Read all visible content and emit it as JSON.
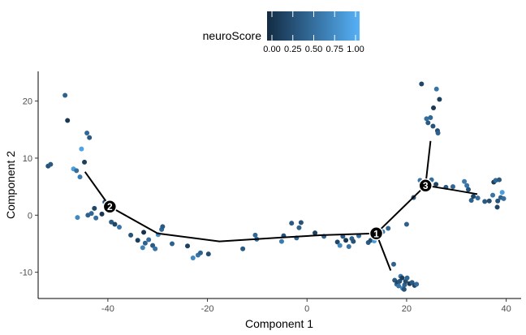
{
  "chart_data": {
    "type": "scatter",
    "xlabel": "Component 1",
    "ylabel": "Component 2",
    "xlim": [
      -54,
      43
    ],
    "ylim": [
      -14.6,
      25.2
    ],
    "xticks": [
      -40,
      -20,
      0,
      20,
      40
    ],
    "yticks": [
      -10,
      0,
      10,
      20
    ],
    "xtick_labels": [
      "-40",
      "-20",
      "0",
      "20",
      "40"
    ],
    "ytick_labels": [
      "-10",
      "0",
      "10",
      "20"
    ],
    "grid": false,
    "legend": {
      "title": "neuroScore",
      "placement": "top",
      "ticks": [
        0.0,
        0.25,
        0.5,
        0.75,
        1.0
      ],
      "tick_labels": [
        "0.00",
        "0.25",
        "0.50",
        "0.75",
        "1.00"
      ],
      "color_low": "#132b43",
      "color_high": "#56b1f7"
    },
    "trajectory": [
      [
        [
          -44.6,
          7.6
        ],
        [
          -39.6,
          1.5
        ],
        [
          -30,
          -3.2
        ],
        [
          -17.6,
          -4.6
        ],
        [
          -5,
          -3.9
        ],
        [
          3,
          -3.5
        ],
        [
          13.9,
          -3.2
        ]
      ],
      [
        [
          13.9,
          -3.2
        ],
        [
          23.8,
          5.2
        ]
      ],
      [
        [
          23.8,
          5.2
        ],
        [
          24.8,
          13.0
        ]
      ],
      [
        [
          23.8,
          5.2
        ],
        [
          29.5,
          4.4
        ],
        [
          34.2,
          3.7
        ]
      ],
      [
        [
          13.9,
          -3.2
        ],
        [
          16.8,
          -9.7
        ]
      ]
    ],
    "branch_nodes": [
      {
        "label": "1",
        "x": 13.9,
        "y": -3.2
      },
      {
        "label": "2",
        "x": -39.6,
        "y": 1.5
      },
      {
        "label": "3",
        "x": 23.8,
        "y": 5.2
      }
    ],
    "points": [
      {
        "x": -52,
        "y": 8.6,
        "score": 0.3
      },
      {
        "x": -51.5,
        "y": 8.9,
        "score": 0.35
      },
      {
        "x": -48.6,
        "y": 21.0,
        "score": 0.4
      },
      {
        "x": -48.1,
        "y": 16.6,
        "score": 0.1
      },
      {
        "x": -46.9,
        "y": 8.1,
        "score": 0.85
      },
      {
        "x": -46.3,
        "y": 7.8,
        "score": 0.5
      },
      {
        "x": -45.3,
        "y": 11.6,
        "score": 0.9
      },
      {
        "x": -44.7,
        "y": 9.3,
        "score": 0.15
      },
      {
        "x": -44.2,
        "y": 14.4,
        "score": 0.45
      },
      {
        "x": -43.7,
        "y": 13.6,
        "score": 0.35
      },
      {
        "x": -45.6,
        "y": 6.7,
        "score": 0.6
      },
      {
        "x": -46.1,
        "y": -0.4,
        "score": 0.7
      },
      {
        "x": -44.0,
        "y": 0.0,
        "score": 0.4
      },
      {
        "x": -43.3,
        "y": 0.3,
        "score": 0.45
      },
      {
        "x": -42.7,
        "y": 1.2,
        "score": 0.2
      },
      {
        "x": -42.4,
        "y": -0.5,
        "score": 0.5
      },
      {
        "x": -41.2,
        "y": 0.2,
        "score": 0.1
      },
      {
        "x": -40.6,
        "y": 2.3,
        "score": 0.3
      },
      {
        "x": -39.3,
        "y": -1.2,
        "score": 0.35
      },
      {
        "x": -38.6,
        "y": -1.6,
        "score": 0.2
      },
      {
        "x": -37.7,
        "y": -2.1,
        "score": 0.55
      },
      {
        "x": -35.4,
        "y": -3.5,
        "score": 0.3
      },
      {
        "x": -34.0,
        "y": -4.4,
        "score": 0.15
      },
      {
        "x": -33.0,
        "y": -5.7,
        "score": 0.65
      },
      {
        "x": -32.5,
        "y": -4.9,
        "score": 0.4
      },
      {
        "x": -32.8,
        "y": -3.0,
        "score": 0.05
      },
      {
        "x": -31.8,
        "y": -4.3,
        "score": 0.5
      },
      {
        "x": -31.0,
        "y": -5.3,
        "score": 0.35
      },
      {
        "x": -30.5,
        "y": -5.9,
        "score": 0.55
      },
      {
        "x": -29.9,
        "y": -3.4,
        "score": 0.75
      },
      {
        "x": -29.2,
        "y": -2.5,
        "score": 0.45
      },
      {
        "x": -29.0,
        "y": -2.0,
        "score": 0.35
      },
      {
        "x": -27.1,
        "y": -5.0,
        "score": 0.4
      },
      {
        "x": -24.0,
        "y": -5.4,
        "score": 0.15
      },
      {
        "x": -22.9,
        "y": -7.5,
        "score": 0.7
      },
      {
        "x": -21.9,
        "y": -7.0,
        "score": 0.55
      },
      {
        "x": -21.4,
        "y": -6.6,
        "score": 0.4
      },
      {
        "x": -19.8,
        "y": -6.8,
        "score": 0.25
      },
      {
        "x": -12.9,
        "y": -5.9,
        "score": 0.35
      },
      {
        "x": -10.4,
        "y": -3.5,
        "score": 0.45
      },
      {
        "x": -10.1,
        "y": -4.2,
        "score": 0.5
      },
      {
        "x": -5.1,
        "y": -4.6,
        "score": 0.6
      },
      {
        "x": -4.7,
        "y": -3.6,
        "score": 0.3
      },
      {
        "x": -3.1,
        "y": -1.4,
        "score": 0.35
      },
      {
        "x": -2.1,
        "y": -4.0,
        "score": 0.45
      },
      {
        "x": -1.6,
        "y": -2.2,
        "score": 0.4
      },
      {
        "x": -1.2,
        "y": -1.3,
        "score": 0.3
      },
      {
        "x": 1.6,
        "y": -3.1,
        "score": 0.15
      },
      {
        "x": 3.4,
        "y": -3.7,
        "score": 0.45
      },
      {
        "x": 6.1,
        "y": -4.7,
        "score": 0.2
      },
      {
        "x": 6.6,
        "y": -5.3,
        "score": 0.7
      },
      {
        "x": 7.2,
        "y": -3.7,
        "score": 0.35
      },
      {
        "x": 7.8,
        "y": -4.4,
        "score": 0.1
      },
      {
        "x": 8.4,
        "y": -5.5,
        "score": 0.55
      },
      {
        "x": 9.0,
        "y": -4.1,
        "score": 0.4
      },
      {
        "x": 9.3,
        "y": -4.6,
        "score": 0.3
      },
      {
        "x": 10.4,
        "y": -3.6,
        "score": 0.5
      },
      {
        "x": 12.3,
        "y": -4.8,
        "score": 0.35
      },
      {
        "x": 12.8,
        "y": -4.4,
        "score": 0.25
      },
      {
        "x": 13.5,
        "y": -4.5,
        "score": 0.85
      },
      {
        "x": 15.2,
        "y": -2.9,
        "score": 0.6
      },
      {
        "x": 16.3,
        "y": -2.3,
        "score": 0.45
      },
      {
        "x": 17.4,
        "y": -8.6,
        "score": 0.4
      },
      {
        "x": 17.6,
        "y": -11.4,
        "score": 0.35
      },
      {
        "x": 18.0,
        "y": -12.1,
        "score": 0.5
      },
      {
        "x": 18.2,
        "y": -11.8,
        "score": 0.2
      },
      {
        "x": 18.6,
        "y": -11.6,
        "score": 0.3
      },
      {
        "x": 18.8,
        "y": -10.7,
        "score": 0.6
      },
      {
        "x": 19.1,
        "y": -11.0,
        "score": 0.15
      },
      {
        "x": 19.2,
        "y": -12.8,
        "score": 0.65
      },
      {
        "x": 19.6,
        "y": -12.2,
        "score": 0.4
      },
      {
        "x": 19.8,
        "y": -11.6,
        "score": 0.25
      },
      {
        "x": 20.1,
        "y": -11.0,
        "score": 0.45
      },
      {
        "x": 20.6,
        "y": -12.0,
        "score": 0.1
      },
      {
        "x": 21.1,
        "y": -11.8,
        "score": 0.35
      },
      {
        "x": 21.6,
        "y": -12.3,
        "score": 0.2
      },
      {
        "x": 22.0,
        "y": -12.1,
        "score": 0.5
      },
      {
        "x": 19.5,
        "y": -13.0,
        "score": 0.3
      },
      {
        "x": 18.4,
        "y": -12.4,
        "score": 0.55
      },
      {
        "x": 20.0,
        "y": -1.6,
        "score": 0.4
      },
      {
        "x": 21.4,
        "y": 3.1,
        "score": 0.35
      },
      {
        "x": 22.7,
        "y": 6.1,
        "score": 0.55
      },
      {
        "x": 23.5,
        "y": 5.0,
        "score": 0.45
      },
      {
        "x": 23.0,
        "y": 23.0,
        "score": 0.2
      },
      {
        "x": 24.0,
        "y": 16.9,
        "score": 0.5
      },
      {
        "x": 24.3,
        "y": 16.2,
        "score": 0.35
      },
      {
        "x": 24.8,
        "y": 17.1,
        "score": 0.45
      },
      {
        "x": 25.3,
        "y": 15.6,
        "score": 0.3
      },
      {
        "x": 25.4,
        "y": 18.8,
        "score": 0.1
      },
      {
        "x": 26.0,
        "y": 22.1,
        "score": 0.55
      },
      {
        "x": 26.2,
        "y": 14.8,
        "score": 0.25
      },
      {
        "x": 26.6,
        "y": 20.3,
        "score": 0.15
      },
      {
        "x": 26.3,
        "y": 14.4,
        "score": 0.4
      },
      {
        "x": 25.0,
        "y": 6.2,
        "score": 0.5
      },
      {
        "x": 25.9,
        "y": 5.4,
        "score": 0.2
      },
      {
        "x": 27.9,
        "y": 4.9,
        "score": 0.35
      },
      {
        "x": 29.3,
        "y": 5.0,
        "score": 0.45
      },
      {
        "x": 31.6,
        "y": 5.9,
        "score": 0.6
      },
      {
        "x": 32.1,
        "y": 5.2,
        "score": 0.55
      },
      {
        "x": 32.4,
        "y": 4.5,
        "score": 0.3
      },
      {
        "x": 33.0,
        "y": 2.6,
        "score": 0.4
      },
      {
        "x": 33.4,
        "y": 3.3,
        "score": 0.2
      },
      {
        "x": 34.3,
        "y": 3.0,
        "score": 0.5
      },
      {
        "x": 35.7,
        "y": 2.4,
        "score": 0.35
      },
      {
        "x": 36.6,
        "y": 2.5,
        "score": 0.25
      },
      {
        "x": 37.3,
        "y": 3.5,
        "score": 0.55
      },
      {
        "x": 37.5,
        "y": 5.8,
        "score": 0.15
      },
      {
        "x": 37.9,
        "y": 6.1,
        "score": 0.45
      },
      {
        "x": 38.6,
        "y": 6.2,
        "score": 0.35
      },
      {
        "x": 38.3,
        "y": 2.5,
        "score": 0.3
      },
      {
        "x": 38.2,
        "y": 1.4,
        "score": 0.2
      },
      {
        "x": 38.9,
        "y": 3.1,
        "score": 0.4
      },
      {
        "x": 39.2,
        "y": 4.0,
        "score": 0.85
      },
      {
        "x": 39.5,
        "y": 2.9,
        "score": 0.5
      }
    ]
  }
}
